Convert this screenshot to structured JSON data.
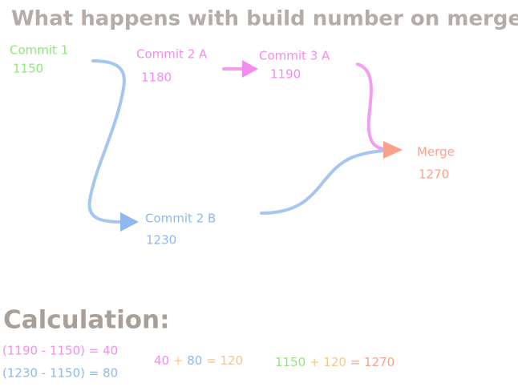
{
  "title": "What happens with build number on merge?",
  "nodes": [
    {
      "label": "Commit 1",
      "number": "1150"
    },
    {
      "label": "Commit 2 A",
      "number": "1180"
    },
    {
      "label": "Commit 3 A",
      "number": "1190"
    },
    {
      "label": "Commit 2 B",
      "number": "1230"
    },
    {
      "label": "Merge",
      "number": "1270"
    }
  ],
  "calculation": {
    "heading": "Calculation:",
    "lines": [
      [
        "(1190 - 1150) = 40"
      ],
      [
        "(1230 - 1150) = 80"
      ],
      [
        "40",
        "+",
        "80",
        "= 120"
      ],
      [
        "1150",
        "+ 120",
        "= 1270"
      ]
    ]
  }
}
